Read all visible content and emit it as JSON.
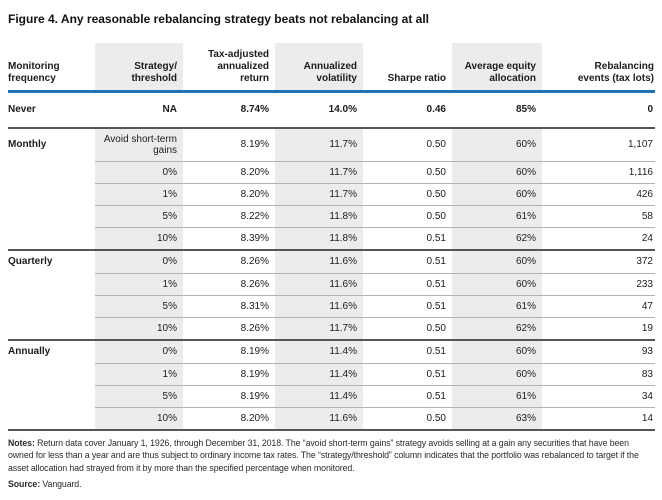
{
  "figure": {
    "title": "Figure 4. Any reasonable rebalancing strategy beats not rebalancing at all"
  },
  "colors": {
    "header_rule_blue": "#1f72b8",
    "group_rule_dark": "#55565a",
    "row_rule_gray": "#b3b3b3",
    "shaded_band_gray": "#ececec"
  },
  "table": {
    "columns": [
      {
        "key": "monitoring-frequency",
        "label": "Monitoring frequency",
        "lines": [
          "Monitoring",
          "frequency"
        ],
        "align": "left",
        "shaded": false
      },
      {
        "key": "strategy-threshold",
        "label": "Strategy/threshold",
        "lines": [
          "Strategy/",
          "threshold"
        ],
        "align": "right",
        "shaded": true
      },
      {
        "key": "tax-adjusted-annualized-return",
        "label": "Tax-adjusted annualized return",
        "lines": [
          "Tax-adjusted",
          "annualized",
          "return"
        ],
        "align": "right",
        "shaded": false
      },
      {
        "key": "annualized-volatility",
        "label": "Annualized volatility",
        "lines": [
          "Annualized",
          "volatility"
        ],
        "align": "right",
        "shaded": true
      },
      {
        "key": "sharpe-ratio",
        "label": "Sharpe ratio",
        "lines": [
          "Sharpe ratio"
        ],
        "align": "right",
        "shaded": false
      },
      {
        "key": "average-equity-allocation",
        "label": "Average equity allocation",
        "lines": [
          "Average equity",
          "allocation"
        ],
        "align": "right",
        "shaded": true
      },
      {
        "key": "rebalancing-events",
        "label": "Rebalancing events (tax lots)",
        "lines": [
          "Rebalancing",
          "events (tax lots)"
        ],
        "align": "right",
        "shaded": false
      }
    ],
    "groups": [
      {
        "frequency": "Never",
        "bold": true,
        "shaded": false,
        "rows": [
          {
            "strategy": "NA",
            "ret": "8.74%",
            "vol": "14.0%",
            "sharpe": "0.46",
            "equity": "85%",
            "events": "0"
          }
        ]
      },
      {
        "frequency": "Monthly",
        "shaded": true,
        "rows": [
          {
            "strategy": "Avoid short-term gains",
            "tall": true,
            "ret": "8.19%",
            "vol": "11.7%",
            "sharpe": "0.50",
            "equity": "60%",
            "events": "1,107"
          },
          {
            "strategy": "0%",
            "ret": "8.20%",
            "vol": "11.7%",
            "sharpe": "0.50",
            "equity": "60%",
            "events": "1,116"
          },
          {
            "strategy": "1%",
            "ret": "8.20%",
            "vol": "11.7%",
            "sharpe": "0.50",
            "equity": "60%",
            "events": "426"
          },
          {
            "strategy": "5%",
            "ret": "8.22%",
            "vol": "11.8%",
            "sharpe": "0.50",
            "equity": "61%",
            "events": "58"
          },
          {
            "strategy": "10%",
            "ret": "8.39%",
            "vol": "11.8%",
            "sharpe": "0.51",
            "equity": "62%",
            "events": "24"
          }
        ]
      },
      {
        "frequency": "Quarterly",
        "shaded": true,
        "rows": [
          {
            "strategy": "0%",
            "ret": "8.26%",
            "vol": "11.6%",
            "sharpe": "0.51",
            "equity": "60%",
            "events": "372"
          },
          {
            "strategy": "1%",
            "ret": "8.26%",
            "vol": "11.6%",
            "sharpe": "0.51",
            "equity": "60%",
            "events": "233"
          },
          {
            "strategy": "5%",
            "ret": "8.31%",
            "vol": "11.6%",
            "sharpe": "0.51",
            "equity": "61%",
            "events": "47"
          },
          {
            "strategy": "10%",
            "ret": "8.26%",
            "vol": "11.7%",
            "sharpe": "0.50",
            "equity": "62%",
            "events": "19"
          }
        ]
      },
      {
        "frequency": "Annually",
        "shaded": true,
        "rows": [
          {
            "strategy": "0%",
            "ret": "8.19%",
            "vol": "11.4%",
            "sharpe": "0.51",
            "equity": "60%",
            "events": "93"
          },
          {
            "strategy": "1%",
            "ret": "8.19%",
            "vol": "11.4%",
            "sharpe": "0.51",
            "equity": "60%",
            "events": "83"
          },
          {
            "strategy": "5%",
            "ret": "8.19%",
            "vol": "11.4%",
            "sharpe": "0.51",
            "equity": "61%",
            "events": "34"
          },
          {
            "strategy": "10%",
            "ret": "8.20%",
            "vol": "11.6%",
            "sharpe": "0.50",
            "equity": "63%",
            "events": "14"
          }
        ]
      }
    ]
  },
  "notes": {
    "label": "Notes: ",
    "text": "Return data cover January 1, 1926, through December 31, 2018. The “avoid short-term gains” strategy avoids selling at a gain any securities that have been owned for less than a year and are thus subject to ordinary income tax rates. The “strategy/threshold” column indicates that the portfolio was rebalanced to target if the asset allocation had strayed from it by more than the specified percentage when monitored.",
    "source_label": "Source: ",
    "source_text": "Vanguard."
  }
}
